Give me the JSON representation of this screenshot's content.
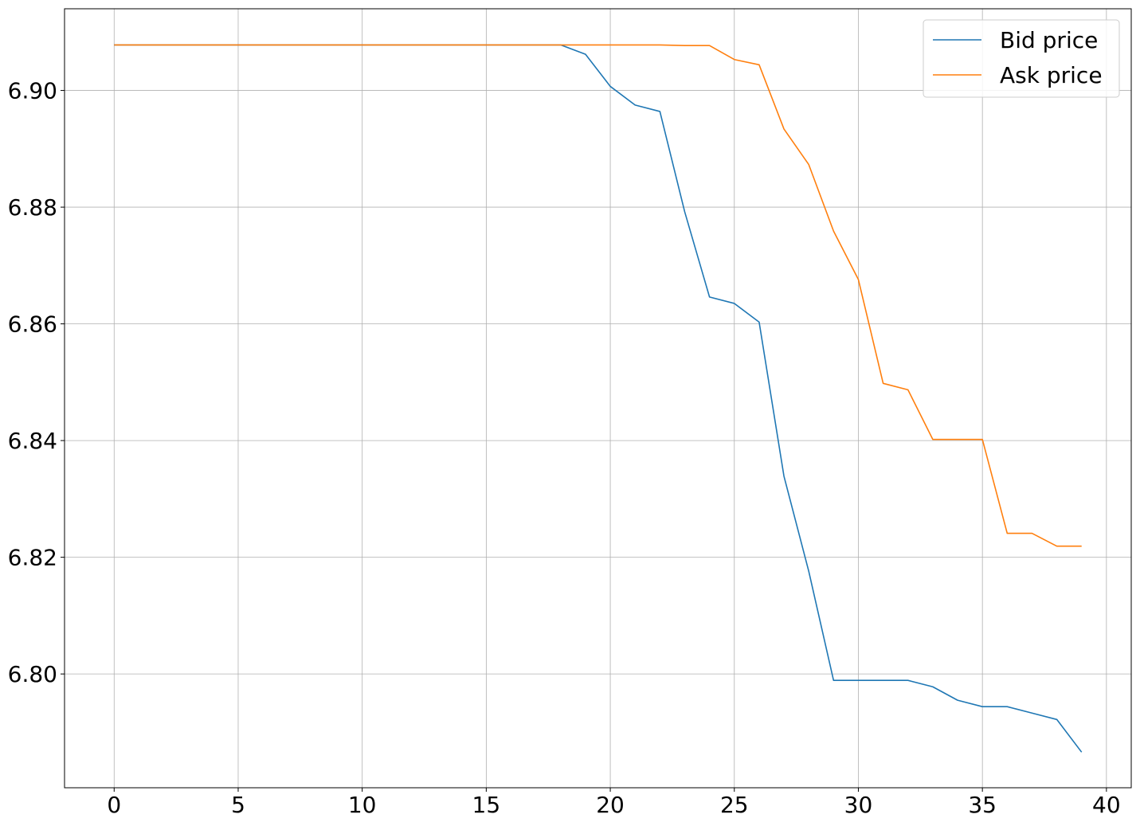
{
  "chart_data": {
    "type": "line",
    "title": "",
    "xlabel": "",
    "ylabel": "",
    "xlim": [
      -2,
      41
    ],
    "ylim": [
      6.7805,
      6.914
    ],
    "xticks": [
      0,
      5,
      10,
      15,
      20,
      25,
      30,
      35,
      40
    ],
    "xtick_labels": [
      "0",
      "5",
      "10",
      "15",
      "20",
      "25",
      "30",
      "35",
      "40"
    ],
    "yticks": [
      6.8,
      6.82,
      6.84,
      6.86,
      6.88,
      6.9
    ],
    "ytick_labels": [
      "6.80",
      "6.82",
      "6.84",
      "6.86",
      "6.88",
      "6.90"
    ],
    "grid": true,
    "legend_position": "top-right",
    "x": [
      0,
      1,
      2,
      3,
      4,
      5,
      6,
      7,
      8,
      9,
      10,
      11,
      12,
      13,
      14,
      15,
      16,
      17,
      18,
      19,
      20,
      21,
      22,
      23,
      24,
      25,
      26,
      27,
      28,
      29,
      30,
      31,
      32,
      33,
      34,
      35,
      36,
      37,
      38,
      39
    ],
    "series": [
      {
        "name": "Bid price",
        "color": "#1f77b4",
        "values": [
          6.9078,
          6.9078,
          6.9078,
          6.9078,
          6.9078,
          6.9078,
          6.9078,
          6.9078,
          6.9078,
          6.9078,
          6.9078,
          6.9078,
          6.9078,
          6.9078,
          6.9078,
          6.9078,
          6.9078,
          6.9078,
          6.9078,
          6.9062,
          6.9007,
          6.8975,
          6.8964,
          6.8792,
          6.8646,
          6.8635,
          6.8603,
          6.8339,
          6.8176,
          6.7989,
          6.7989,
          6.7989,
          6.7989,
          6.7978,
          6.7955,
          6.7944,
          6.7944,
          6.7933,
          6.7922,
          6.7866
        ]
      },
      {
        "name": "Ask price",
        "color": "#ff7f0e",
        "values": [
          6.9078,
          6.9078,
          6.9078,
          6.9078,
          6.9078,
          6.9078,
          6.9078,
          6.9078,
          6.9078,
          6.9078,
          6.9078,
          6.9078,
          6.9078,
          6.9078,
          6.9078,
          6.9078,
          6.9078,
          6.9078,
          6.9078,
          6.9078,
          6.9078,
          6.9078,
          6.9078,
          6.9077,
          6.9077,
          6.9053,
          6.9044,
          6.8934,
          6.8873,
          6.8759,
          6.8676,
          6.8498,
          6.8487,
          6.8402,
          6.8402,
          6.8402,
          6.8241,
          6.8241,
          6.8219,
          6.8219
        ]
      }
    ]
  }
}
